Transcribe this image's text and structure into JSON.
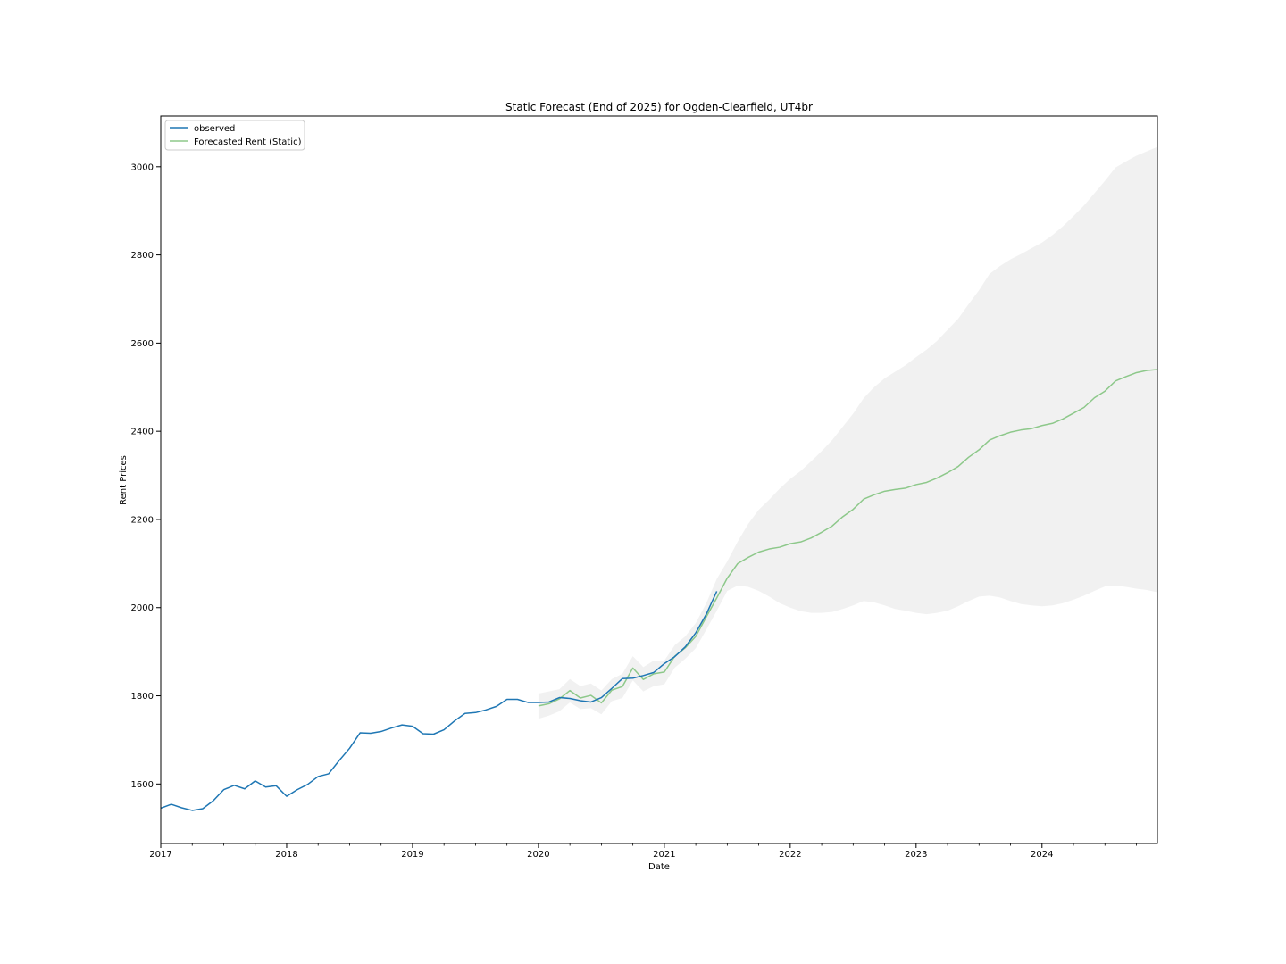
{
  "chart_data": {
    "type": "line",
    "title": "Static Forecast (End of 2025) for Ogden-Clearfield, UT4br",
    "xlabel": "Date",
    "ylabel": "Rent Prices",
    "xlim": [
      "2017-01",
      "2024-12"
    ],
    "ylim": [
      1465,
      3115
    ],
    "x_tick_labels": [
      "2017",
      "2018",
      "2019",
      "2020",
      "2021",
      "2022",
      "2023",
      "2024"
    ],
    "y_ticks": [
      1600,
      1800,
      2000,
      2200,
      2400,
      2600,
      2800,
      3000
    ],
    "y_tick_labels": [
      "1600",
      "1800",
      "2000",
      "2200",
      "2400",
      "2600",
      "2800",
      "3000"
    ],
    "grid": false,
    "legend_position": "top-left",
    "series": [
      {
        "name": "observed",
        "color": "#1f77b4",
        "x": [
          "2017-01",
          "2017-02",
          "2017-03",
          "2017-04",
          "2017-05",
          "2017-06",
          "2017-07",
          "2017-08",
          "2017-09",
          "2017-10",
          "2017-11",
          "2017-12",
          "2018-01",
          "2018-02",
          "2018-03",
          "2018-04",
          "2018-05",
          "2018-06",
          "2018-07",
          "2018-08",
          "2018-09",
          "2018-10",
          "2018-11",
          "2018-12",
          "2019-01",
          "2019-02",
          "2019-03",
          "2019-04",
          "2019-05",
          "2019-06",
          "2019-07",
          "2019-08",
          "2019-09",
          "2019-10",
          "2019-11",
          "2019-12",
          "2020-01",
          "2020-02",
          "2020-03",
          "2020-04",
          "2020-05",
          "2020-06",
          "2020-07",
          "2020-08",
          "2020-09",
          "2020-10",
          "2020-11",
          "2020-12",
          "2021-01",
          "2021-02",
          "2021-03",
          "2021-04",
          "2021-05",
          "2021-06"
        ],
        "values": [
          1545,
          1554,
          1546,
          1540,
          1544,
          1562,
          1587,
          1597,
          1589,
          1607,
          1593,
          1596,
          1572,
          1587,
          1599,
          1617,
          1623,
          1653,
          1681,
          1716,
          1715,
          1719,
          1727,
          1734,
          1731,
          1714,
          1713,
          1723,
          1743,
          1760,
          1762,
          1768,
          1776,
          1792,
          1792,
          1785,
          1785,
          1786,
          1796,
          1794,
          1789,
          1786,
          1796,
          1817,
          1839,
          1840,
          1846,
          1853,
          1873,
          1889,
          1911,
          1943,
          1985,
          2037
        ]
      },
      {
        "name": "Forecasted Rent (Static)",
        "color": "#8dc88a",
        "x": [
          "2020-01",
          "2020-02",
          "2020-03",
          "2020-04",
          "2020-05",
          "2020-06",
          "2020-07",
          "2020-08",
          "2020-09",
          "2020-10",
          "2020-11",
          "2020-12",
          "2021-01",
          "2021-02",
          "2021-03",
          "2021-04",
          "2021-05",
          "2021-06",
          "2021-07",
          "2021-08",
          "2021-09",
          "2021-10",
          "2021-11",
          "2021-12",
          "2022-01",
          "2022-02",
          "2022-03",
          "2022-04",
          "2022-05",
          "2022-06",
          "2022-07",
          "2022-08",
          "2022-09",
          "2022-10",
          "2022-11",
          "2022-12",
          "2023-01",
          "2023-02",
          "2023-03",
          "2023-04",
          "2023-05",
          "2023-06",
          "2023-07",
          "2023-08",
          "2023-09",
          "2023-10",
          "2023-11",
          "2023-12",
          "2024-01",
          "2024-02",
          "2024-03",
          "2024-04",
          "2024-05",
          "2024-06",
          "2024-07",
          "2024-08",
          "2024-09",
          "2024-10",
          "2024-11",
          "2024-12"
        ],
        "values": [
          1777,
          1782,
          1793,
          1812,
          1795,
          1801,
          1784,
          1813,
          1821,
          1863,
          1837,
          1850,
          1854,
          1890,
          1909,
          1935,
          1979,
          2022,
          2067,
          2100,
          2114,
          2126,
          2133,
          2137,
          2145,
          2149,
          2158,
          2171,
          2185,
          2206,
          2223,
          2246,
          2256,
          2264,
          2268,
          2271,
          2279,
          2284,
          2294,
          2306,
          2320,
          2341,
          2358,
          2380,
          2390,
          2398,
          2403,
          2406,
          2413,
          2418,
          2428,
          2441,
          2454,
          2476,
          2491,
          2514,
          2524,
          2533,
          2538,
          2540
        ]
      }
    ],
    "confidence_band": {
      "color": "#d3d3d3",
      "x": [
        "2020-01",
        "2020-02",
        "2020-03",
        "2020-04",
        "2020-05",
        "2020-06",
        "2020-07",
        "2020-08",
        "2020-09",
        "2020-10",
        "2020-11",
        "2020-12",
        "2021-01",
        "2021-02",
        "2021-03",
        "2021-04",
        "2021-05",
        "2021-06",
        "2021-07",
        "2021-08",
        "2021-09",
        "2021-10",
        "2021-11",
        "2021-12",
        "2022-01",
        "2022-02",
        "2022-03",
        "2022-04",
        "2022-05",
        "2022-06",
        "2022-07",
        "2022-08",
        "2022-09",
        "2022-10",
        "2022-11",
        "2022-12",
        "2023-01",
        "2023-02",
        "2023-03",
        "2023-04",
        "2023-05",
        "2023-06",
        "2023-07",
        "2023-08",
        "2023-09",
        "2023-10",
        "2023-11",
        "2023-12",
        "2024-01",
        "2024-02",
        "2024-03",
        "2024-04",
        "2024-05",
        "2024-06",
        "2024-07",
        "2024-08",
        "2024-09",
        "2024-10",
        "2024-11",
        "2024-12"
      ],
      "upper": [
        1805,
        1810,
        1815,
        1838,
        1822,
        1828,
        1812,
        1838,
        1850,
        1890,
        1865,
        1880,
        1880,
        1915,
        1935,
        1965,
        2010,
        2065,
        2105,
        2150,
        2190,
        2222,
        2245,
        2270,
        2292,
        2310,
        2332,
        2355,
        2380,
        2410,
        2440,
        2475,
        2500,
        2520,
        2535,
        2550,
        2568,
        2585,
        2605,
        2630,
        2655,
        2688,
        2720,
        2757,
        2775,
        2790,
        2802,
        2815,
        2828,
        2845,
        2865,
        2888,
        2912,
        2940,
        2968,
        2998,
        3012,
        3025,
        3035,
        3045
      ],
      "lower": [
        1748,
        1755,
        1765,
        1785,
        1770,
        1772,
        1758,
        1788,
        1795,
        1835,
        1810,
        1822,
        1826,
        1864,
        1884,
        1908,
        1950,
        1993,
        2038,
        2050,
        2047,
        2038,
        2025,
        2010,
        2000,
        1992,
        1988,
        1988,
        1990,
        1997,
        2005,
        2015,
        2012,
        2005,
        1997,
        1993,
        1988,
        1985,
        1988,
        1993,
        2003,
        2015,
        2025,
        2027,
        2023,
        2015,
        2008,
        2005,
        2003,
        2005,
        2010,
        2018,
        2027,
        2038,
        2048,
        2050,
        2047,
        2043,
        2040,
        2035
      ]
    }
  }
}
